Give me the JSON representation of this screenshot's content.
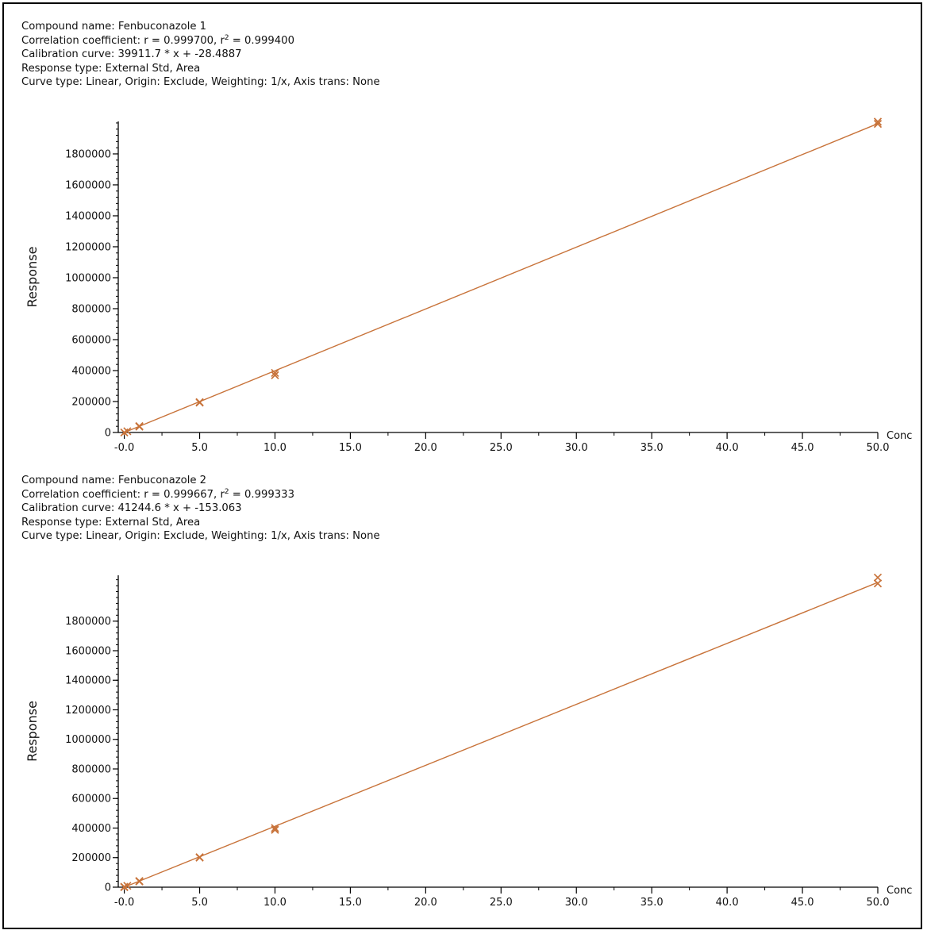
{
  "colors": {
    "series": "#c8733a",
    "axis": "#000000",
    "text": "#111111"
  },
  "panels": [
    {
      "compound_label": "Compound name: Fenbuconazole 1",
      "correlation_prefix": "Correlation coefficient: r = 0.999700, r",
      "correlation_sup": "2",
      "correlation_suffix": " = 0.999400",
      "calibration_label": "Calibration curve: 39911.7 * x + -28.4887",
      "response_type_label": "Response type: External Std, Area",
      "curve_type_label": "Curve type: Linear, Origin: Exclude, Weighting: 1/x, Axis trans: None"
    },
    {
      "compound_label": "Compound name: Fenbuconazole 2",
      "correlation_prefix": "Correlation coefficient: r = 0.999667, r",
      "correlation_sup": "2",
      "correlation_suffix": "  = 0.999333",
      "calibration_label": "Calibration curve: 41244.6 * x + -153.063",
      "response_type_label": "Response type: External Std, Area",
      "curve_type_label": "Curve type: Linear, Origin: Exclude, Weighting: 1/x, Axis trans: None"
    }
  ],
  "chart_data": [
    {
      "type": "scatter",
      "xlabel": "Conc",
      "ylabel": "Response",
      "xlim": [
        -0.4,
        50.0
      ],
      "ylim": [
        0,
        2010000
      ],
      "x_ticks": [
        "-0.0",
        "5.0",
        "10.0",
        "15.0",
        "20.0",
        "25.0",
        "30.0",
        "35.0",
        "40.0",
        "45.0",
        "50.0"
      ],
      "y_ticks": [
        "0",
        "200000",
        "400000",
        "600000",
        "800000",
        "1000000",
        "1200000",
        "1400000",
        "1600000",
        "1800000"
      ],
      "fit_line": {
        "slope": 39911.7,
        "intercept": -28.4887
      },
      "points": [
        {
          "x": 0.0,
          "y": 0
        },
        {
          "x": 0.2,
          "y": 8000
        },
        {
          "x": 1.0,
          "y": 38000
        },
        {
          "x": 1.0,
          "y": 41000
        },
        {
          "x": 5.0,
          "y": 193000
        },
        {
          "x": 5.0,
          "y": 196000
        },
        {
          "x": 10.0,
          "y": 370000
        },
        {
          "x": 10.0,
          "y": 385000
        },
        {
          "x": 50.0,
          "y": 1994000
        },
        {
          "x": 50.0,
          "y": 2008000
        }
      ]
    },
    {
      "type": "scatter",
      "xlabel": "Conc",
      "ylabel": "Response",
      "xlim": [
        -0.4,
        50.0
      ],
      "ylim": [
        0,
        2110000
      ],
      "x_ticks": [
        "-0.0",
        "5.0",
        "10.0",
        "15.0",
        "20.0",
        "25.0",
        "30.0",
        "35.0",
        "40.0",
        "45.0",
        "50.0"
      ],
      "y_ticks": [
        "0",
        "200000",
        "400000",
        "600000",
        "800000",
        "1000000",
        "1200000",
        "1400000",
        "1600000",
        "1800000"
      ],
      "fit_line": {
        "slope": 41244.6,
        "intercept": -153.063
      },
      "points": [
        {
          "x": 0.0,
          "y": 0
        },
        {
          "x": 0.0,
          "y": 3000
        },
        {
          "x": 0.2,
          "y": 9000
        },
        {
          "x": 1.0,
          "y": 39000
        },
        {
          "x": 1.0,
          "y": 42000
        },
        {
          "x": 5.0,
          "y": 200000
        },
        {
          "x": 5.0,
          "y": 203000
        },
        {
          "x": 10.0,
          "y": 388000
        },
        {
          "x": 10.0,
          "y": 400000
        },
        {
          "x": 50.0,
          "y": 2055000
        },
        {
          "x": 50.0,
          "y": 2095000
        }
      ]
    }
  ]
}
